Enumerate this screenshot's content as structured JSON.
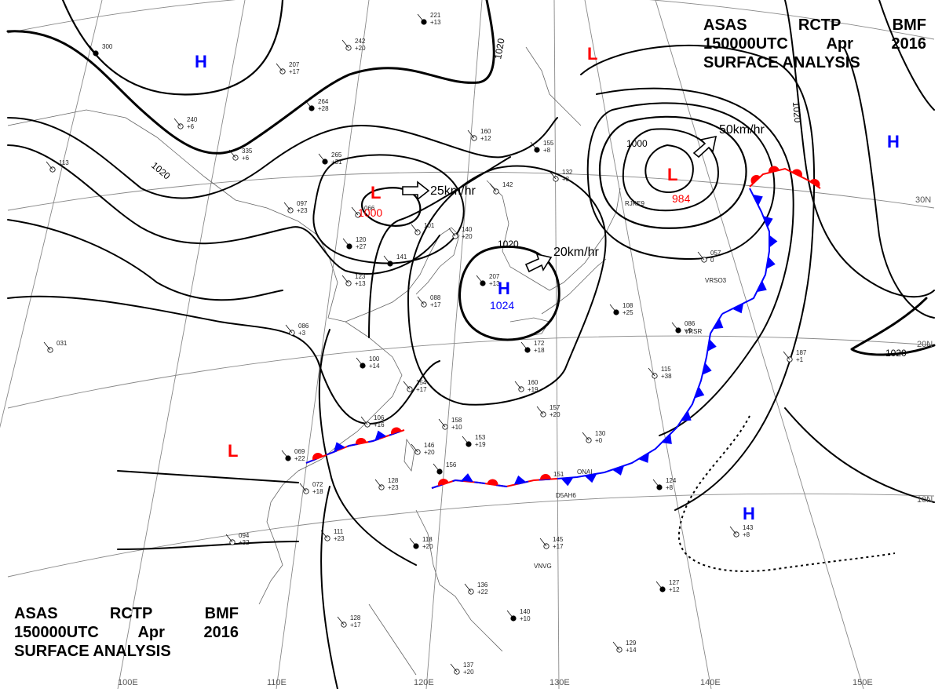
{
  "header": {
    "line1": [
      "ASAS",
      "RCTP",
      "BMF"
    ],
    "line2": [
      "150000UTC",
      "Apr",
      "2016"
    ],
    "line3": "SURFACE  ANALYSIS"
  },
  "colors": {
    "low": "#ff0000",
    "high": "#0000ff",
    "isobar": "#000000",
    "coast": "#555555",
    "grid": "#777777"
  },
  "lat_labels": [
    "30N",
    "20N",
    "10N"
  ],
  "lon_labels": [
    "100E",
    "110E",
    "120E",
    "130E",
    "140E",
    "150E"
  ],
  "isobar_labels": [
    "1020",
    "1020",
    "1020",
    "1000",
    "1020",
    "1020"
  ],
  "systems": [
    {
      "type": "H",
      "value": ""
    },
    {
      "type": "L",
      "value": ""
    },
    {
      "type": "L",
      "value": "1000"
    },
    {
      "type": "H",
      "value": "1024"
    },
    {
      "type": "L",
      "value": "984"
    },
    {
      "type": "H",
      "value": ""
    },
    {
      "type": "L",
      "value": ""
    },
    {
      "type": "H",
      "value": ""
    }
  ],
  "motions": [
    {
      "speed": "25km/hr"
    },
    {
      "speed": "20km/hr"
    },
    {
      "speed": "50km/hr"
    }
  ],
  "stations": [
    [
      "221",
      "+13"
    ],
    [
      "242",
      "+20"
    ],
    [
      "207",
      "+17"
    ],
    [
      "264",
      "+28"
    ],
    [
      "240",
      "+6"
    ],
    [
      "335",
      "+6"
    ],
    [
      "265",
      "+31"
    ],
    [
      "097",
      "+23"
    ],
    [
      "066",
      ""
    ],
    [
      "120",
      "+27"
    ],
    [
      "123",
      "+13"
    ],
    [
      "101",
      ""
    ],
    [
      "141",
      ""
    ],
    [
      "140",
      "+20"
    ],
    [
      "160",
      "+12"
    ],
    [
      "155",
      "+8"
    ],
    [
      "132",
      "+3"
    ],
    [
      "142",
      ""
    ],
    [
      "207",
      "+13"
    ],
    [
      "088",
      "+17"
    ],
    [
      "086",
      "+3"
    ],
    [
      "100",
      "+14"
    ],
    [
      "154",
      "+17"
    ],
    [
      "160",
      "+19"
    ],
    [
      "172",
      "+18"
    ],
    [
      "106",
      "+16"
    ],
    [
      "158",
      "+10"
    ],
    [
      "153",
      "+19"
    ],
    [
      "157",
      "+20"
    ],
    [
      "146",
      "+20"
    ],
    [
      "156",
      ""
    ],
    [
      "128",
      "+23"
    ],
    [
      "072",
      "+18"
    ],
    [
      "069",
      "+22"
    ],
    [
      "094",
      "+32"
    ],
    [
      "111",
      "+23"
    ],
    [
      "118",
      "+20"
    ],
    [
      "145",
      "+17"
    ],
    [
      "136",
      "+22"
    ],
    [
      "140",
      "+10"
    ],
    [
      "128",
      "+17"
    ],
    [
      "137",
      "+20"
    ],
    [
      "127",
      "+12"
    ],
    [
      "129",
      "+14"
    ],
    [
      "143",
      "+8"
    ],
    [
      "124",
      "+8"
    ],
    [
      "130",
      "+0"
    ],
    [
      "115",
      "+38"
    ],
    [
      "086",
      "+9"
    ],
    [
      "057",
      "0"
    ],
    [
      "187",
      "+1"
    ],
    [
      "108",
      "+25"
    ],
    [
      "031",
      ""
    ],
    [
      "113",
      ""
    ],
    [
      "300",
      ""
    ]
  ],
  "station_ids": [
    "RJKE9",
    "VRSO3",
    "VRSR",
    "ONAI",
    "D5AH6",
    "VNVG"
  ],
  "station_ids_extra": [
    "151"
  ]
}
